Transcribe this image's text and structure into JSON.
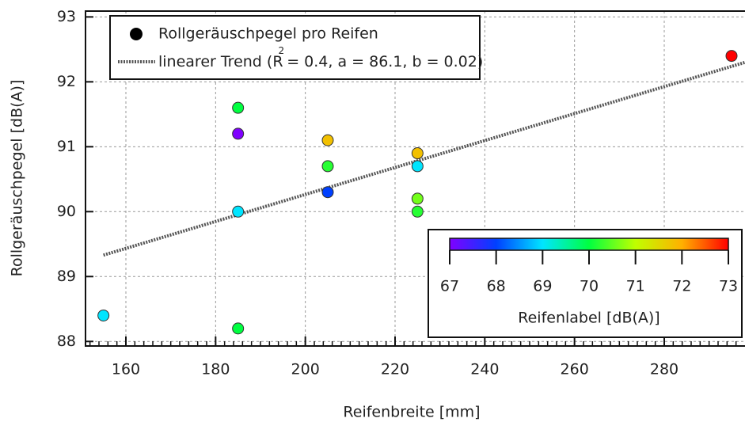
{
  "chart_data": {
    "type": "scatter",
    "xlabel": "Reifenbreite [mm]",
    "ylabel": "Rollgeräuschpegel [dB(A)]",
    "xlim": [
      151,
      298
    ],
    "ylim": [
      87.93,
      93.09
    ],
    "xticks": [
      160,
      180,
      200,
      220,
      240,
      260,
      280
    ],
    "yticks": [
      88,
      89,
      90,
      91,
      92,
      93
    ],
    "grid": true,
    "legend": "upper left",
    "series": [
      {
        "name": "Rollgeräuschpegel pro Reifen",
        "color": "#000000",
        "x": [
          185,
          185,
          185,
          185,
          155,
          205,
          205,
          205,
          225,
          225,
          225,
          225,
          295
        ],
        "y": [
          91.6,
          91.2,
          90.0,
          88.2,
          88.4,
          91.1,
          90.7,
          90.3,
          90.9,
          90.7,
          90.2,
          90.0,
          92.4
        ],
        "colorvalues": [
          70,
          67,
          69,
          70,
          69,
          71.8,
          70.2,
          68,
          71.8,
          69,
          70.6,
          70.2,
          73
        ]
      }
    ],
    "trend": {
      "name_parts": [
        "linearer Trend (R",
        "2",
        " = 0.4, a = 86.1, b = 0.02)"
      ],
      "color": "#555555",
      "x": [
        155,
        298
      ],
      "y": [
        89.33,
        92.3
      ]
    },
    "colorbar": {
      "label": "Reifenlabel [dB(A)]",
      "clim": [
        67,
        73
      ],
      "ticks": [
        67,
        68,
        69,
        70,
        71,
        72,
        73
      ],
      "colors": [
        "#8000ff",
        "#0040ff",
        "#00e5ff",
        "#00ff40",
        "#c0ff00",
        "#ffb000",
        "#ff0000"
      ]
    }
  }
}
